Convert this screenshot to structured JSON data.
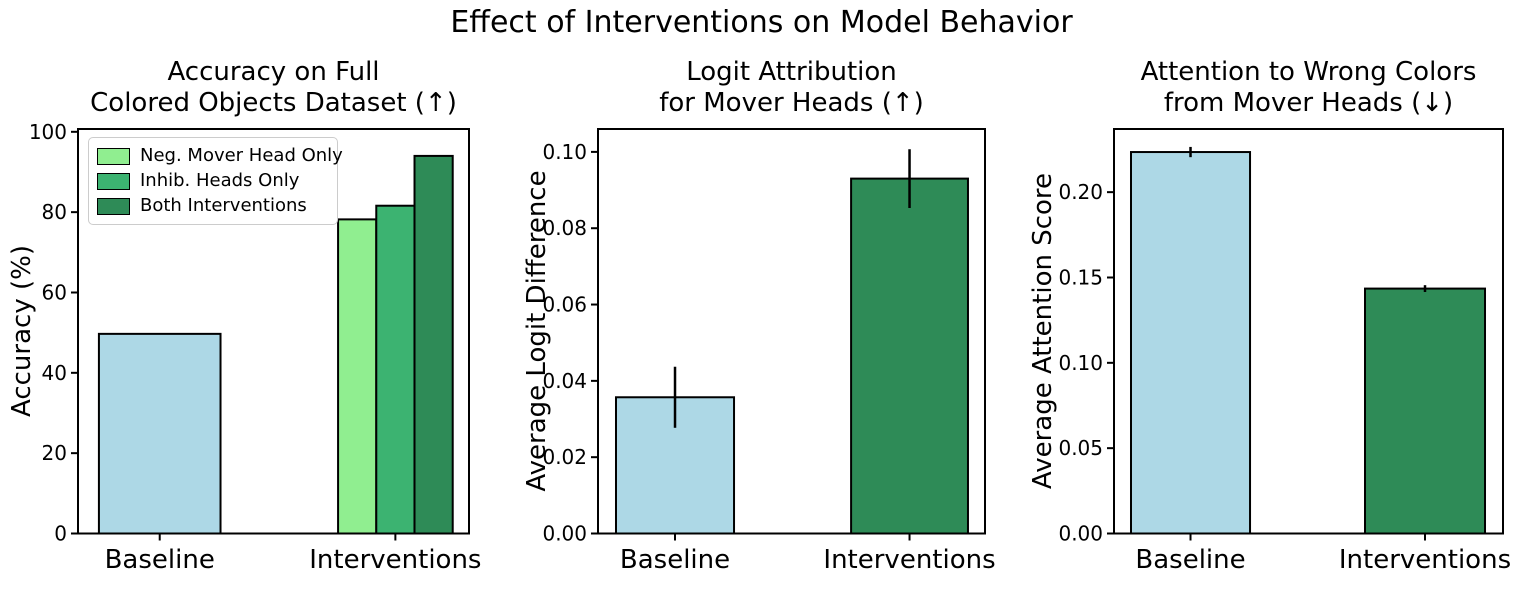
{
  "figure": {
    "title": "Effect of Interventions on Model Behavior",
    "background": "#ffffff"
  },
  "legend": {
    "items": [
      {
        "label": "Neg. Mover Head Only",
        "color": "#90EE90"
      },
      {
        "label": "Inhib. Heads Only",
        "color": "#3CB371"
      },
      {
        "label": "Both Interventions",
        "color": "#2E8B57"
      }
    ]
  },
  "colors": {
    "baseline_bar": "#ADD8E6",
    "intervention_bar": "#2E8B57",
    "bar_edge": "#000000",
    "axis": "#000000"
  },
  "chart_data": [
    {
      "type": "bar",
      "title_line1": "Accuracy on Full",
      "title_line2": "Colored Objects Dataset (↑)",
      "ylabel": "Accuracy (%)",
      "xlabel": "",
      "ylim": [
        0,
        100.7
      ],
      "yticks": [
        0,
        20,
        40,
        60,
        80,
        100
      ],
      "ytick_labels": [
        "0",
        "20",
        "40",
        "60",
        "80",
        "100"
      ],
      "categories": [
        "Baseline",
        "Interventions"
      ],
      "grid": false,
      "legend_position": "upper left",
      "bars": [
        {
          "label": "Baseline",
          "value": 49.7,
          "color": "#ADD8E6",
          "err": 0
        },
        {
          "label": "Neg. Mover Head Only",
          "value": 78.2,
          "color": "#90EE90",
          "err": 0
        },
        {
          "label": "Inhib. Heads Only",
          "value": 81.6,
          "color": "#3CB371",
          "err": 0
        },
        {
          "label": "Both Interventions",
          "value": 94.0,
          "color": "#2E8B57",
          "err": 0
        }
      ]
    },
    {
      "type": "bar",
      "title_line1": "Logit Attribution",
      "title_line2": "for Mover Heads (↑)",
      "ylabel": "Average Logit Difference",
      "xlabel": "",
      "ylim": [
        0,
        0.106
      ],
      "yticks": [
        0,
        0.02,
        0.04,
        0.06,
        0.08,
        0.1
      ],
      "ytick_labels": [
        "0.00",
        "0.02",
        "0.04",
        "0.06",
        "0.08",
        "0.10"
      ],
      "categories": [
        "Baseline",
        "Interventions"
      ],
      "grid": false,
      "bars": [
        {
          "label": "Baseline",
          "value": 0.0357,
          "color": "#ADD8E6",
          "err": 0.008
        },
        {
          "label": "Interventions",
          "value": 0.093,
          "color": "#2E8B57",
          "err": 0.0077
        }
      ]
    },
    {
      "type": "bar",
      "title_line1": "Attention to Wrong Colors",
      "title_line2": "from Mover Heads (↓)",
      "ylabel": "Average Attention Score",
      "xlabel": "",
      "ylim": [
        0,
        0.237
      ],
      "yticks": [
        0,
        0.05,
        0.1,
        0.15,
        0.2
      ],
      "ytick_labels": [
        "0.00",
        "0.05",
        "0.10",
        "0.15",
        "0.20"
      ],
      "categories": [
        "Baseline",
        "Interventions"
      ],
      "grid": false,
      "bars": [
        {
          "label": "Baseline",
          "value": 0.2235,
          "color": "#ADD8E6",
          "err": 0.003
        },
        {
          "label": "Interventions",
          "value": 0.1435,
          "color": "#2E8B57",
          "err": 0.002
        }
      ]
    }
  ]
}
